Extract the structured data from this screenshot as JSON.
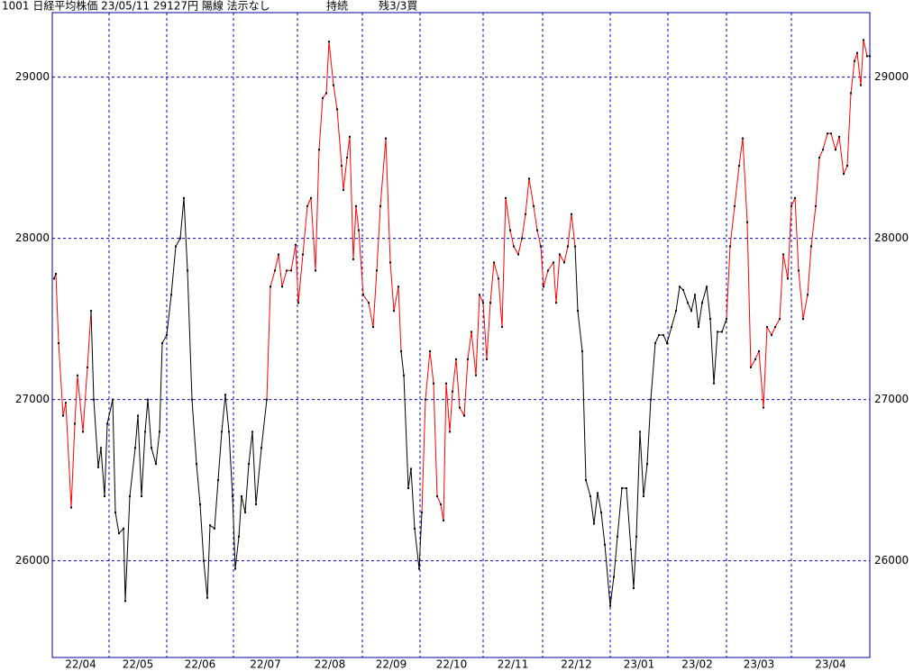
{
  "chart_data": {
    "type": "line",
    "title": "1001 日経平均株価 23/05/11 29127円 陽線 法示なし",
    "status": "持続",
    "signal": "残3/3買",
    "categories": [
      "22/04",
      "22/05",
      "22/06",
      "22/07",
      "22/08",
      "22/09",
      "22/10",
      "22/11",
      "22/12",
      "23/01",
      "23/02",
      "23/03",
      "23/04"
    ],
    "xgrid": [
      63,
      127,
      201,
      272,
      344,
      408,
      478,
      544,
      619,
      683,
      748,
      820
    ],
    "xlim": [
      0,
      907
    ],
    "ylim": [
      25400,
      29400
    ],
    "yticks": [
      26000,
      27000,
      28000,
      29000
    ],
    "grid": true,
    "grid_color": "#0000cc",
    "frame_color": "#000099",
    "point_color": "#000000",
    "series": [
      {
        "color": "#000000",
        "x": [
          2,
          4
        ],
        "values": [
          27750,
          27780
        ]
      },
      {
        "color": "#ff0000",
        "x": [
          7,
          12,
          15,
          21,
          25,
          28,
          34,
          39,
          43
        ],
        "values": [
          27350,
          26900,
          26980,
          26330,
          26850,
          27150,
          26800,
          27200,
          27550
        ]
      },
      {
        "color": "#000000",
        "x": [
          46,
          51,
          54,
          58,
          61,
          67,
          70,
          74,
          79,
          81,
          86,
          92,
          95,
          99,
          103,
          106,
          110,
          115,
          119,
          122,
          127,
          132,
          137,
          142,
          146,
          150,
          155,
          160,
          164,
          168,
          172,
          175,
          180,
          184,
          188,
          192,
          196,
          200,
          203,
          207,
          210,
          214,
          218,
          222,
          226,
          232,
          238
        ],
        "values": [
          27000,
          26580,
          26700,
          26400,
          26850,
          27000,
          26300,
          26170,
          26200,
          25750,
          26400,
          26700,
          26900,
          26400,
          26800,
          27000,
          26700,
          26600,
          26800,
          27350,
          27400,
          27650,
          27950,
          28000,
          28250,
          27800,
          27000,
          26600,
          26350,
          26000,
          25770,
          26220,
          26200,
          26500,
          26800,
          27030,
          26800,
          26400,
          25950,
          26150,
          26400,
          26300,
          26600,
          26800,
          26350,
          26700,
          27000
        ]
      },
      {
        "color": "#ff0000",
        "x": [
          242,
          247,
          251,
          255,
          260,
          265,
          270,
          273,
          278,
          283,
          287,
          292,
          296,
          300,
          304,
          307,
          312,
          316,
          321,
          323,
          327,
          330,
          334,
          337,
          340,
          345,
          351,
          356,
          360,
          364,
          370,
          375,
          379,
          384,
          387
        ],
        "values": [
          27700,
          27800,
          27900,
          27700,
          27800,
          27800,
          27960,
          27600,
          27900,
          28200,
          28250,
          27800,
          28550,
          28870,
          28900,
          29220,
          28950,
          28800,
          28450,
          28300,
          28500,
          28630,
          27870,
          28200,
          28050,
          27650,
          27600,
          27450,
          27800,
          28200,
          28620,
          27850,
          27550,
          27700,
          27300
        ]
      },
      {
        "color": "#000000",
        "x": [
          390,
          395,
          398,
          402,
          407,
          410
        ],
        "values": [
          27150,
          26450,
          26570,
          26200,
          25950,
          26300
        ]
      },
      {
        "color": "#ff0000",
        "x": [
          414,
          419,
          423,
          427,
          431,
          434,
          437,
          441,
          444,
          448,
          452,
          457,
          461,
          465,
          470,
          474,
          478,
          482,
          486,
          490,
          495,
          499,
          503,
          508,
          512,
          517,
          521,
          525,
          529,
          534,
          538,
          542,
          545,
          550,
          556,
          559,
          563,
          568,
          572,
          576,
          580
        ],
        "values": [
          27000,
          27300,
          27100,
          26400,
          26350,
          26250,
          27100,
          26800,
          27050,
          27250,
          26950,
          26900,
          27250,
          27420,
          27150,
          27650,
          27600,
          27250,
          27600,
          27850,
          27750,
          27450,
          28250,
          28050,
          27950,
          27900,
          28000,
          28150,
          28370,
          28200,
          28050,
          27950,
          27700,
          27800,
          27850,
          27600,
          27900,
          27850,
          27950,
          28150,
          27950
        ]
      },
      {
        "color": "#000000",
        "x": [
          583,
          588,
          592,
          597,
          601,
          605,
          609,
          613,
          619,
          623,
          627,
          632,
          637,
          642,
          645,
          648,
          652,
          656,
          660,
          664,
          669,
          673,
          678,
          682,
          687,
          692,
          696,
          700,
          705,
          709,
          713,
          717,
          721,
          726,
          730,
          734,
          738,
          743,
          748
        ],
        "values": [
          27550,
          27300,
          26500,
          26400,
          26230,
          26420,
          26300,
          26100,
          25720,
          25900,
          26150,
          26450,
          26450,
          26070,
          25830,
          26150,
          26800,
          26400,
          26600,
          27000,
          27350,
          27400,
          27400,
          27350,
          27450,
          27550,
          27700,
          27680,
          27600,
          27550,
          27650,
          27450,
          27600,
          27700,
          27500,
          27100,
          27420,
          27420,
          27500
        ]
      },
      {
        "color": "#ff0000",
        "x": [
          752,
          757,
          762,
          766,
          771,
          775,
          780,
          784,
          789,
          793,
          798,
          802,
          807,
          811,
          816,
          820,
          824,
          828,
          833,
          838,
          842,
          847,
          851,
          855,
          860,
          864,
          869,
          873,
          878,
          882,
          886,
          890,
          893,
          897,
          900,
          904,
          907
        ],
        "values": [
          27950,
          28200,
          28450,
          28620,
          28100,
          27200,
          27250,
          27300,
          26950,
          27450,
          27400,
          27450,
          27500,
          27900,
          27750,
          28200,
          28250,
          27800,
          27500,
          27650,
          27950,
          28200,
          28500,
          28550,
          28650,
          28650,
          28550,
          28630,
          28400,
          28450,
          28900,
          29100,
          29150,
          28950,
          29230,
          29130,
          29130
        ]
      }
    ]
  }
}
